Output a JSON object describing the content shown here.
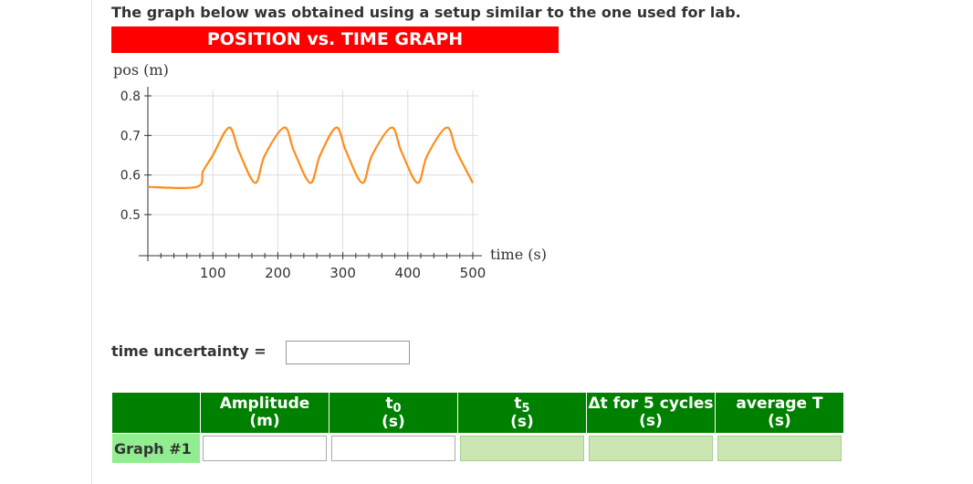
{
  "intro_text": "The graph below was obtained using a setup similar to the one used for lab.",
  "banner_title": "POSITION vs. TIME GRAPH",
  "colors": {
    "banner": "#ff0000",
    "line": "#ff8c1a",
    "header_green": "#008000",
    "label_green": "#90ee90",
    "computed_cell": "#cbe6b3"
  },
  "chart_data": {
    "type": "line",
    "title": "",
    "xlabel": "time (s)",
    "ylabel": "pos (m)",
    "xlim": [
      0,
      500
    ],
    "ylim": [
      0.45,
      0.8
    ],
    "x_ticks": [
      "100",
      "200",
      "300",
      "400",
      "500"
    ],
    "y_ticks": [
      "0.8",
      "0.7",
      "0.6",
      "0.5"
    ],
    "grid": true,
    "series": [
      {
        "x": [
          0,
          75,
          85,
          100,
          125,
          140,
          165,
          180,
          210,
          225,
          250,
          265,
          290,
          305,
          330,
          345,
          375,
          390,
          415,
          430,
          460,
          475,
          500
        ],
        "y": [
          0.57,
          0.57,
          0.61,
          0.65,
          0.72,
          0.66,
          0.58,
          0.65,
          0.72,
          0.66,
          0.58,
          0.65,
          0.72,
          0.66,
          0.58,
          0.65,
          0.72,
          0.66,
          0.58,
          0.65,
          0.72,
          0.66,
          0.58
        ]
      }
    ]
  },
  "uncertainty": {
    "label": "time uncertainty =",
    "value": ""
  },
  "table": {
    "headers": [
      {
        "line1": "Amplitude",
        "line2": "(m)"
      },
      {
        "line1": "t",
        "sub": "0",
        "line2": "(s)"
      },
      {
        "line1": "t",
        "sub": "5",
        "line2": "(s)"
      },
      {
        "line1": "Δt for 5 cycles",
        "line2": "(s)"
      },
      {
        "line1": "average T",
        "line2": "(s)"
      }
    ],
    "row_label": "Graph #1",
    "values": [
      "",
      "",
      "",
      "",
      ""
    ]
  }
}
